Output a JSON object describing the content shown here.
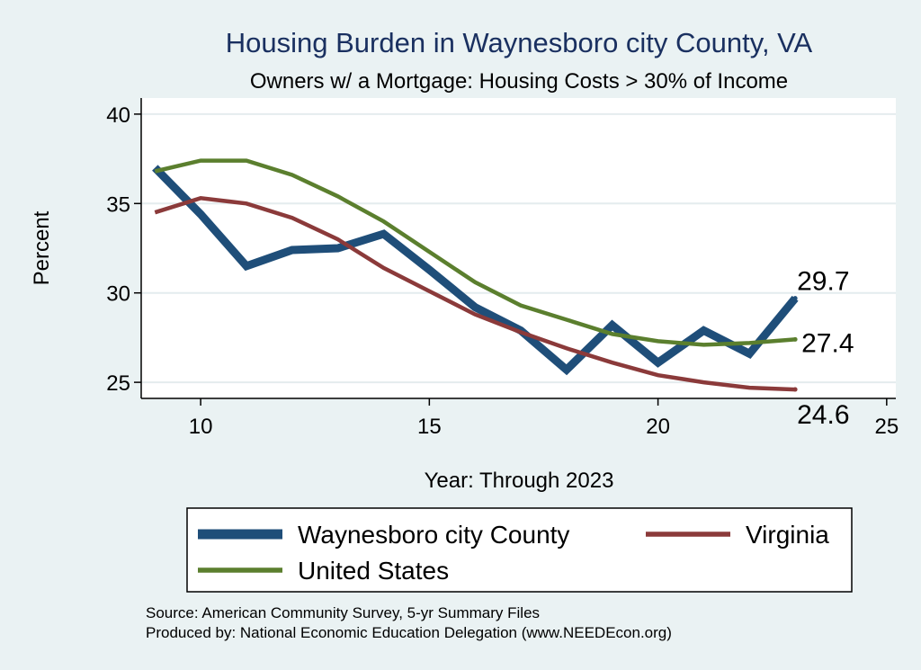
{
  "chart_data": {
    "type": "line",
    "title": "Housing Burden in Waynesboro city County, VA",
    "subtitle": "Owners w/ a Mortgage: Housing Costs > 30% of Income",
    "xlabel": "Year: Through 2023",
    "ylabel": "Percent",
    "xlim": [
      8.7,
      25.2
    ],
    "ylim": [
      24.1,
      40.9
    ],
    "xticks": [
      10,
      15,
      20,
      25
    ],
    "yticks": [
      25,
      30,
      35,
      40
    ],
    "grid": true,
    "legend": "bottom",
    "series": [
      {
        "name": "Waynesboro city County",
        "color": "#1f4e79",
        "x": [
          9,
          10,
          11,
          12,
          13,
          14,
          15,
          16,
          17,
          18,
          19,
          20,
          21,
          22,
          23
        ],
        "values": [
          37.0,
          34.4,
          31.5,
          32.4,
          32.5,
          33.3,
          31.3,
          29.2,
          27.9,
          25.7,
          28.2,
          26.1,
          27.9,
          26.6,
          29.7
        ]
      },
      {
        "name": "Virginia",
        "color": "#8b3a3a",
        "x": [
          9,
          10,
          11,
          12,
          13,
          14,
          15,
          16,
          17,
          18,
          19,
          20,
          21,
          22,
          23
        ],
        "values": [
          34.5,
          35.3,
          35.0,
          34.2,
          33.0,
          31.4,
          30.1,
          28.8,
          27.8,
          26.9,
          26.1,
          25.4,
          25.0,
          24.7,
          24.6
        ]
      },
      {
        "name": "United States",
        "color": "#5b7f2e",
        "x": [
          9,
          10,
          11,
          12,
          13,
          14,
          15,
          16,
          17,
          18,
          19,
          20,
          21,
          22,
          23
        ],
        "values": [
          36.8,
          37.4,
          37.4,
          36.6,
          35.4,
          34.0,
          32.3,
          30.6,
          29.3,
          28.5,
          27.7,
          27.3,
          27.1,
          27.2,
          27.4
        ]
      }
    ],
    "end_labels": [
      "29.7",
      "24.6",
      "27.4"
    ],
    "source_lines": [
      "Source: American Community Survey, 5-yr Summary Files",
      "Produced by: National Economic Education Delegation (www.NEEDEcon.org)"
    ]
  }
}
